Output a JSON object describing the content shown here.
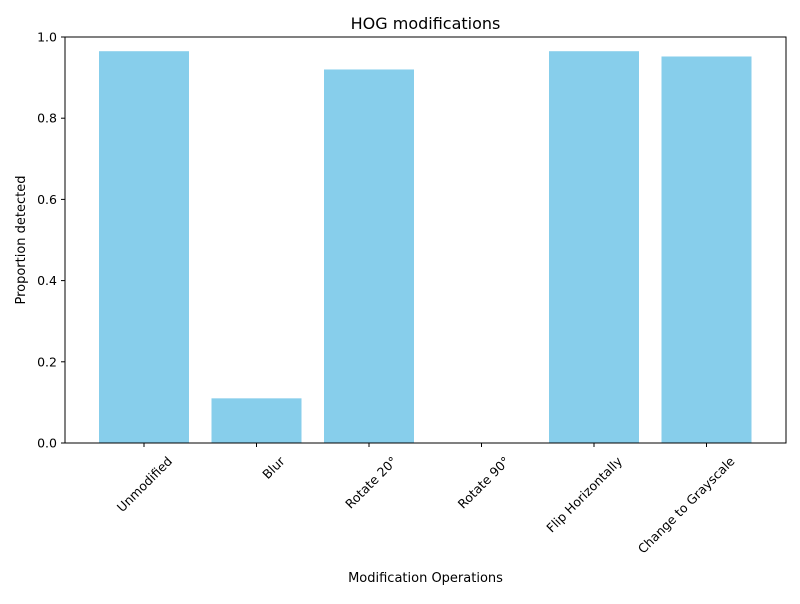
{
  "chart_data": {
    "type": "bar",
    "title": "HOG modifications",
    "xlabel": "Modification Operations",
    "ylabel": "Proportion detected",
    "categories": [
      "Unmodified",
      "Blur",
      "Rotate 20°",
      "Rotate 90°",
      "Flip Horizontally",
      "Change to Grayscale"
    ],
    "values": [
      0.965,
      0.11,
      0.92,
      0.0,
      0.965,
      0.952
    ],
    "ylim": [
      0,
      1.0
    ],
    "yticks": [
      "0.0",
      "0.2",
      "0.4",
      "0.6",
      "0.8",
      "1.0"
    ],
    "bar_color": "#87CEEB",
    "grid": false,
    "legend": false
  }
}
